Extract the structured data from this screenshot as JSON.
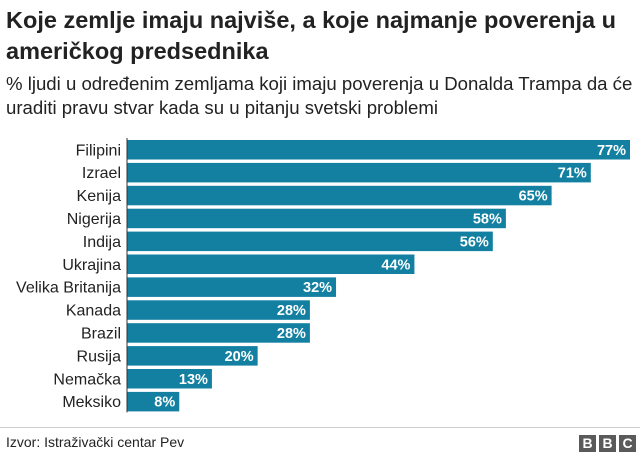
{
  "header": {
    "title": "Koje zemlje imaju najviše, a koje najmanje poverenja u američkog predsednika",
    "subtitle": "% ljudi u određenim zemljama koji imaju poverenja u Donalda Trampa da će uraditi pravu stvar kada su u pitanju svetski problemi"
  },
  "footer": {
    "source": "Izvor: Istraživački centar Pev",
    "logo_letters": [
      "B",
      "B",
      "C"
    ]
  },
  "colors": {
    "bar": "#1380A1",
    "bar_label": "#ffffff",
    "text": "#222222",
    "logo": "#5a5a5a"
  },
  "chart_data": {
    "type": "bar",
    "orientation": "horizontal",
    "title": "Koje zemlje imaju najviše, a koje najmanje poverenja u američkog predsednika",
    "subtitle": "% ljudi u određenim zemljama koji imaju poverenja u Donalda Trampa da će uraditi pravu stvar kada su u pitanju svetski problemi",
    "xlabel": "",
    "ylabel": "",
    "xlim": [
      0,
      77
    ],
    "unit": "%",
    "categories": [
      "Filipini",
      "Izrael",
      "Kenija",
      "Nigerija",
      "Indija",
      "Ukrajina",
      "Velika Britanija",
      "Kanada",
      "Brazil",
      "Rusija",
      "Nemačka",
      "Meksiko"
    ],
    "values": [
      77,
      71,
      65,
      58,
      56,
      44,
      32,
      28,
      28,
      20,
      13,
      8
    ],
    "data_labels": [
      "77%",
      "71%",
      "65%",
      "58%",
      "56%",
      "44%",
      "32%",
      "28%",
      "28%",
      "20%",
      "13%",
      "8%"
    ]
  }
}
